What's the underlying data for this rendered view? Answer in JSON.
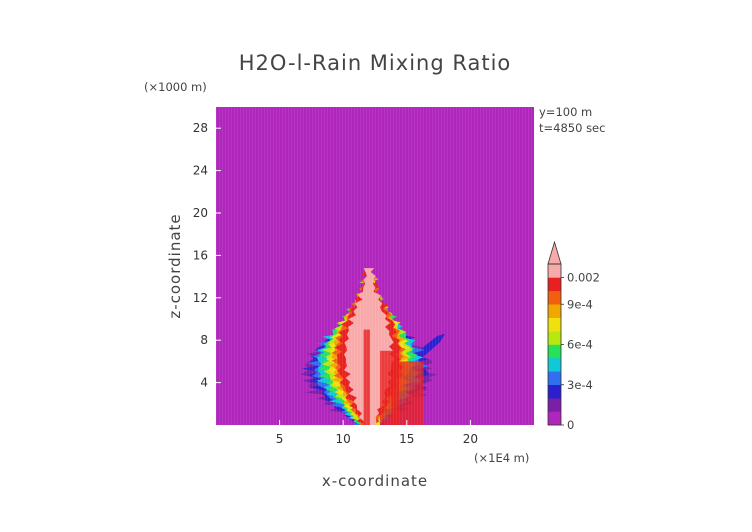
{
  "chart_data": {
    "type": "heatmap",
    "title": "H2O-l-Rain Mixing Ratio",
    "xlabel": "x-coordinate",
    "ylabel": "z-coordinate",
    "x_scale_note": "(×1E4 m)",
    "y_scale_note": "(×1000 m)",
    "annotations": [
      "y=100 m",
      "t=4850 sec"
    ],
    "xlim": [
      0,
      25
    ],
    "ylim": [
      0,
      30
    ],
    "x_ticks": [
      5,
      10,
      15,
      20
    ],
    "x_tick_labels": [
      "5",
      "10",
      "15",
      "20"
    ],
    "y_ticks": [
      4,
      8,
      12,
      16,
      20,
      24,
      28
    ],
    "y_tick_labels": [
      "4",
      "8",
      "12",
      "16",
      "20",
      "24",
      "28"
    ],
    "colorbar": {
      "levels": [
        0,
        0.0001,
        0.0002,
        0.0003,
        0.0004,
        0.0005,
        0.0006,
        0.0007,
        0.0008,
        0.0009,
        0.001,
        0.002
      ],
      "tick_values": [
        0,
        0.0003,
        0.0006,
        0.0009,
        0.002
      ],
      "tick_labels": [
        "0",
        "3e-4",
        "6e-4",
        "9e-4",
        "0.002"
      ],
      "colors": [
        "#b026bc",
        "#7a1fa8",
        "#2b1fd0",
        "#2f6ff0",
        "#10c8d8",
        "#28e05a",
        "#b8e812",
        "#f0e010",
        "#f0a800",
        "#f06010",
        "#e82020",
        "#f8aaaa"
      ],
      "extend": "max"
    },
    "background_value": 0,
    "core": {
      "x_center": 12.2,
      "z_top": 14.8,
      "max_value": 0.002
    },
    "side_feature": {
      "x_range": [
        14.5,
        18
      ],
      "z_range": [
        5,
        9
      ]
    }
  },
  "colors": {
    "background": "#b026bc",
    "frame": "#ffffff",
    "text": "#444444"
  }
}
